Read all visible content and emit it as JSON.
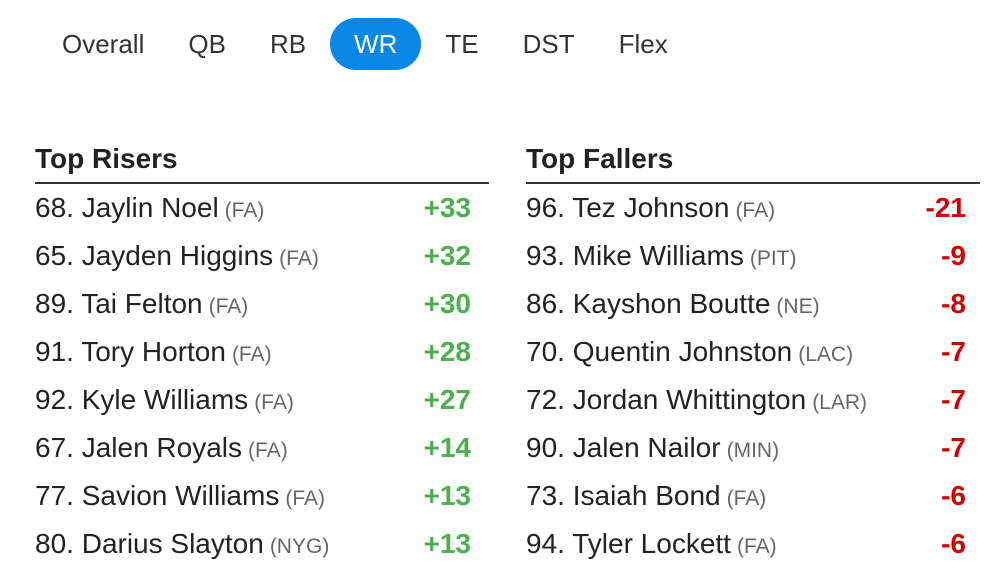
{
  "tabs": [
    {
      "label": "Overall"
    },
    {
      "label": "QB"
    },
    {
      "label": "RB"
    },
    {
      "label": "WR",
      "active": true
    },
    {
      "label": "TE"
    },
    {
      "label": "DST"
    },
    {
      "label": "Flex"
    }
  ],
  "risers": {
    "title": "Top Risers",
    "items": [
      {
        "rank": "68.",
        "name": "Jaylin Noel",
        "team": "(FA)",
        "change": "+33"
      },
      {
        "rank": "65.",
        "name": "Jayden Higgins",
        "team": "(FA)",
        "change": "+32"
      },
      {
        "rank": "89.",
        "name": "Tai Felton",
        "team": "(FA)",
        "change": "+30"
      },
      {
        "rank": "91.",
        "name": "Tory Horton",
        "team": "(FA)",
        "change": "+28"
      },
      {
        "rank": "92.",
        "name": "Kyle Williams",
        "team": "(FA)",
        "change": "+27"
      },
      {
        "rank": "67.",
        "name": "Jalen Royals",
        "team": "(FA)",
        "change": "+14"
      },
      {
        "rank": "77.",
        "name": "Savion Williams",
        "team": "(FA)",
        "change": "+13"
      },
      {
        "rank": "80.",
        "name": "Darius Slayton",
        "team": "(NYG)",
        "change": "+13"
      }
    ]
  },
  "fallers": {
    "title": "Top Fallers",
    "items": [
      {
        "rank": "96.",
        "name": "Tez Johnson",
        "team": "(FA)",
        "change": "-21"
      },
      {
        "rank": "93.",
        "name": "Mike Williams",
        "team": "(PIT)",
        "change": "-9"
      },
      {
        "rank": "86.",
        "name": "Kayshon Boutte",
        "team": "(NE)",
        "change": "-8"
      },
      {
        "rank": "70.",
        "name": "Quentin Johnston",
        "team": "(LAC)",
        "change": "-7"
      },
      {
        "rank": "72.",
        "name": "Jordan Whittington",
        "team": "(LAR)",
        "change": "-7"
      },
      {
        "rank": "90.",
        "name": "Jalen Nailor",
        "team": "(MIN)",
        "change": "-7"
      },
      {
        "rank": "73.",
        "name": "Isaiah Bond",
        "team": "(FA)",
        "change": "-6"
      },
      {
        "rank": "94.",
        "name": "Tyler Lockett",
        "team": "(FA)",
        "change": "-6"
      }
    ]
  },
  "colors": {
    "accent": "#0a86e6",
    "riser": "#4caf50",
    "faller": "#d20000"
  }
}
